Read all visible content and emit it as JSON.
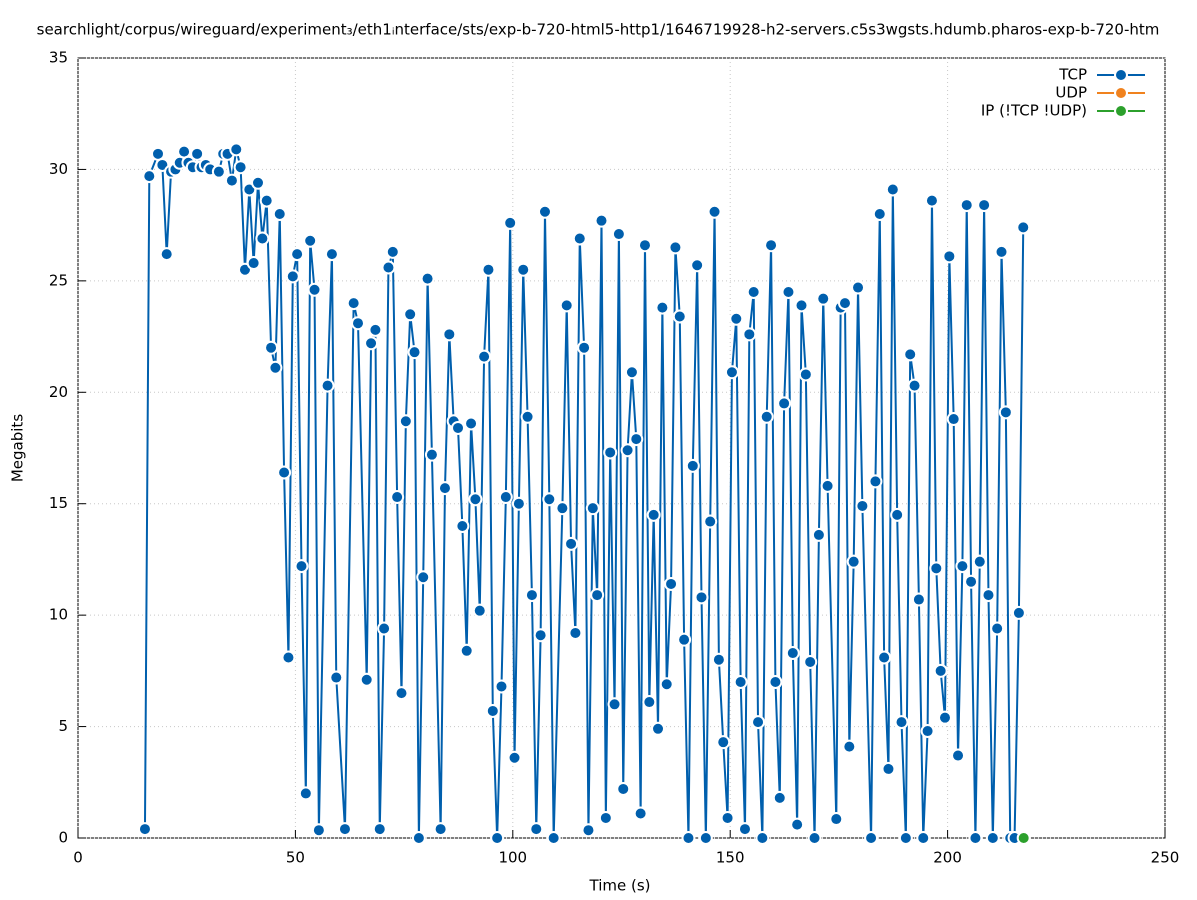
{
  "chart_data": {
    "type": "line",
    "title": "searchlight/corpus/wireguard/experiment₃/eth1ᵢnterface/sts/exp-b-720-html5-http1/1646719928-h2-servers.c5s3wgsts.hdumb.pharos-exp-b-720-htm",
    "x_label": "Time (s)",
    "y_label": "Megabits",
    "xlim": [
      0,
      250
    ],
    "xticks": [
      0,
      50,
      100,
      150,
      200,
      250
    ],
    "ylim": [
      0,
      35
    ],
    "yticks": [
      0,
      5,
      10,
      15,
      20,
      25,
      30,
      35
    ],
    "grid": true,
    "legend": "top-right",
    "series": [
      {
        "name": "TCP",
        "color": "#005fad",
        "x": [
          15.4,
          16.4,
          18.4,
          19.4,
          20.4,
          21.4,
          22.4,
          23.4,
          24.4,
          25.4,
          26.4,
          27.4,
          28.4,
          29.4,
          30.4,
          32.4,
          33.4,
          34.4,
          35.4,
          36.4,
          37.4,
          38.4,
          39.4,
          40.4,
          41.4,
          42.4,
          43.4,
          44.4,
          45.4,
          46.4,
          47.4,
          48.4,
          49.4,
          50.4,
          51.4,
          52.4,
          53.4,
          54.4,
          55.4,
          57.4,
          58.4,
          59.4,
          61.4,
          63.4,
          64.4,
          66.4,
          67.4,
          68.4,
          69.4,
          70.4,
          71.4,
          72.4,
          73.4,
          74.4,
          75.4,
          76.4,
          77.4,
          78.4,
          79.4,
          80.4,
          81.4,
          83.4,
          84.4,
          85.4,
          86.4,
          87.4,
          88.4,
          89.4,
          90.4,
          91.4,
          92.4,
          93.4,
          94.4,
          95.4,
          96.4,
          97.4,
          98.4,
          99.4,
          100.4,
          101.4,
          102.4,
          103.4,
          104.4,
          105.4,
          106.4,
          107.4,
          108.4,
          109.4,
          111.4,
          112.4,
          113.4,
          114.4,
          115.4,
          116.4,
          117.4,
          118.4,
          119.4,
          120.4,
          121.4,
          122.4,
          123.4,
          124.4,
          125.4,
          126.4,
          127.4,
          128.4,
          129.4,
          130.4,
          131.4,
          132.4,
          133.4,
          134.4,
          135.4,
          136.4,
          137.4,
          138.4,
          139.4,
          140.4,
          141.4,
          142.4,
          143.4,
          144.4,
          145.4,
          146.4,
          147.4,
          148.4,
          149.4,
          150.4,
          151.4,
          152.4,
          153.4,
          154.4,
          155.4,
          156.4,
          157.4,
          158.4,
          159.4,
          160.4,
          161.4,
          162.4,
          163.4,
          164.4,
          165.4,
          166.4,
          167.4,
          168.4,
          169.4,
          170.4,
          171.4,
          172.4,
          174.4,
          175.4,
          176.4,
          177.4,
          178.4,
          179.4,
          180.4,
          182.4,
          183.4,
          184.4,
          185.4,
          186.4,
          187.4,
          188.4,
          189.4,
          190.4,
          191.4,
          192.4,
          193.4,
          194.4,
          195.4,
          196.4,
          197.4,
          198.4,
          199.4,
          200.4,
          201.4,
          202.4,
          203.4,
          204.4,
          205.4,
          206.4,
          207.4,
          208.4,
          209.4,
          210.4,
          211.4,
          212.4,
          213.4,
          214.4,
          215.4,
          216.4,
          217.4
        ],
        "values": [
          0.4,
          29.7,
          30.7,
          30.2,
          26.2,
          29.9,
          30.0,
          30.3,
          30.8,
          30.3,
          30.1,
          30.7,
          30.1,
          30.2,
          30.0,
          29.9,
          30.7,
          30.7,
          29.5,
          30.9,
          30.1,
          25.5,
          29.1,
          25.8,
          29.4,
          26.9,
          28.6,
          22.0,
          21.1,
          28.0,
          16.4,
          8.1,
          25.2,
          26.2,
          12.2,
          2.0,
          26.8,
          24.6,
          0.35,
          20.3,
          26.2,
          7.2,
          0.4,
          24.0,
          23.1,
          7.1,
          22.2,
          22.8,
          0.4,
          9.4,
          25.6,
          26.3,
          15.3,
          6.5,
          18.7,
          23.5,
          21.8,
          0,
          11.7,
          25.1,
          17.2,
          0.4,
          15.7,
          22.6,
          18.7,
          18.4,
          14.0,
          8.4,
          18.6,
          15.2,
          10.2,
          21.6,
          25.5,
          5.7,
          0,
          6.8,
          15.3,
          27.6,
          3.6,
          15.0,
          25.5,
          18.9,
          10.9,
          0.4,
          9.1,
          28.1,
          15.2,
          0,
          14.8,
          23.9,
          13.2,
          9.2,
          26.9,
          22.0,
          0.35,
          14.8,
          10.9,
          27.7,
          0.9,
          17.3,
          6.0,
          27.1,
          2.2,
          17.4,
          20.9,
          17.9,
          1.1,
          26.6,
          6.1,
          14.5,
          4.9,
          23.8,
          6.9,
          11.4,
          26.5,
          23.4,
          8.9,
          0,
          16.7,
          25.7,
          10.8,
          0,
          14.2,
          28.1,
          8.0,
          4.3,
          0.9,
          20.9,
          23.3,
          7.0,
          0.4,
          22.6,
          24.5,
          5.2,
          0,
          18.9,
          26.6,
          7.0,
          1.8,
          19.5,
          24.5,
          8.3,
          0.6,
          23.9,
          20.8,
          7.9,
          0,
          13.6,
          24.2,
          15.8,
          0.85,
          23.8,
          24.0,
          4.1,
          12.4,
          24.7,
          14.9,
          0,
          16.0,
          28.0,
          8.1,
          3.1,
          29.1,
          14.5,
          5.2,
          0,
          21.7,
          20.3,
          10.7,
          0,
          4.8,
          28.6,
          12.1,
          7.5,
          5.4,
          26.1,
          18.8,
          3.7,
          12.2,
          28.4,
          11.5,
          0,
          12.4,
          28.4,
          10.9,
          0,
          9.4,
          26.3,
          19.1,
          0,
          0,
          10.1,
          27.4
        ]
      },
      {
        "name": "UDP",
        "color": "#f0821e",
        "x": [],
        "values": []
      },
      {
        "name": "IP (!TCP  !UDP)",
        "color": "#2ca02c",
        "x": [
          217.5
        ],
        "values": [
          0
        ]
      }
    ]
  }
}
